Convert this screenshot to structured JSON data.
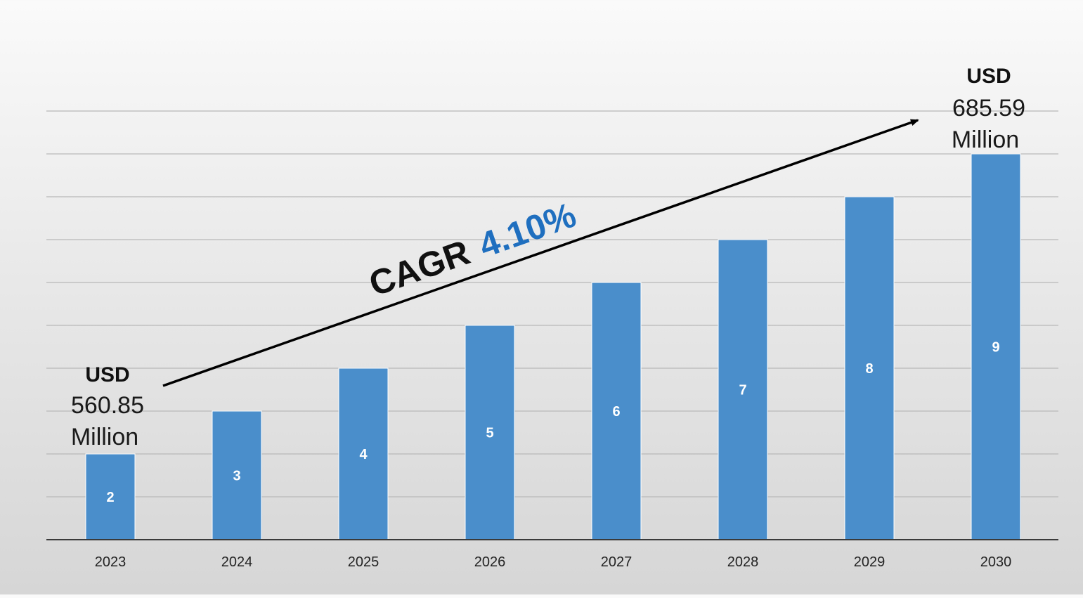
{
  "chart_data": {
    "type": "bar",
    "categories": [
      "2023",
      "2024",
      "2025",
      "2026",
      "2027",
      "2028",
      "2029",
      "2030"
    ],
    "values": [
      2,
      3,
      4,
      5,
      6,
      7,
      8,
      9
    ],
    "data_labels": [
      "2",
      "3",
      "4",
      "5",
      "6",
      "7",
      "8",
      "9"
    ],
    "ylim": [
      0,
      10
    ],
    "grid": true,
    "bar_color": "#4a8ecb",
    "legend": "none"
  },
  "annotations": {
    "start": {
      "head": "USD",
      "value": "560.85",
      "unit": "Million"
    },
    "end": {
      "head": "USD",
      "value": "685.59",
      "unit": "Million"
    },
    "cagr": {
      "label": "CAGR",
      "value": "4.10%",
      "value_color": "#1f6fbf"
    }
  }
}
